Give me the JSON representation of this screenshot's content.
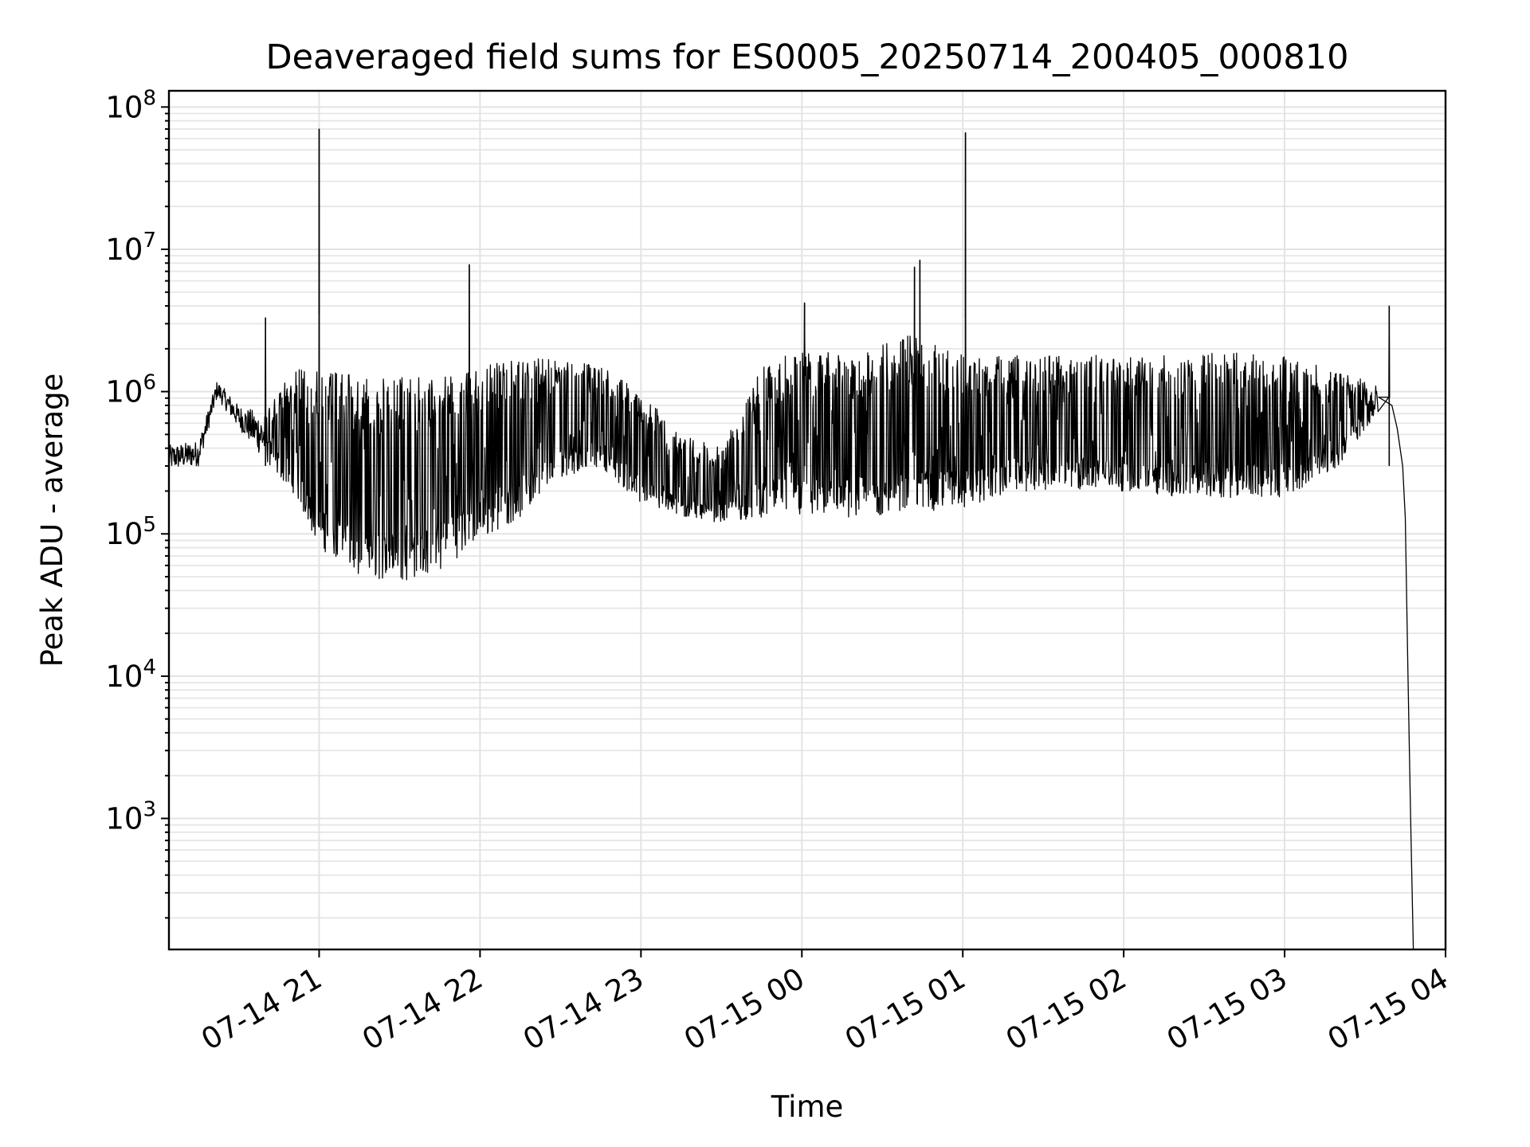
{
  "chart_data": {
    "type": "line",
    "title": "Deaveraged field sums for ES0005_20250714_200405_000810",
    "xlabel": "Time",
    "ylabel": "Peak ADU - average",
    "yscale": "log",
    "grid": true,
    "line_color": "#000000",
    "xlim": [
      "2025-07-14 20:04",
      "2025-07-15 04:00"
    ],
    "ylim": [
      120,
      130000000
    ],
    "x_ticks": [
      {
        "t": "2025-07-14 21:00",
        "label": "07-14 21"
      },
      {
        "t": "2025-07-14 22:00",
        "label": "07-14 22"
      },
      {
        "t": "2025-07-14 23:00",
        "label": "07-14 23"
      },
      {
        "t": "2025-07-15 00:00",
        "label": "07-15 00"
      },
      {
        "t": "2025-07-15 01:00",
        "label": "07-15 01"
      },
      {
        "t": "2025-07-15 02:00",
        "label": "07-15 02"
      },
      {
        "t": "2025-07-15 03:00",
        "label": "07-15 03"
      },
      {
        "t": "2025-07-15 04:00",
        "label": "07-15 04"
      }
    ],
    "y_ticks": [
      {
        "value": 1000,
        "base": "10",
        "exp": "3"
      },
      {
        "value": 10000,
        "base": "10",
        "exp": "4"
      },
      {
        "value": 100000,
        "base": "10",
        "exp": "5"
      },
      {
        "value": 1000000,
        "base": "10",
        "exp": "6"
      },
      {
        "value": 10000000,
        "base": "10",
        "exp": "7"
      },
      {
        "value": 100000000,
        "base": "10",
        "exp": "8"
      }
    ],
    "envelope": [
      {
        "t": "2025-07-14 20:04",
        "low": 280000,
        "high": 420000
      },
      {
        "t": "2025-07-14 20:15",
        "low": 300000,
        "high": 450000
      },
      {
        "t": "2025-07-14 20:22",
        "low": 900000,
        "high": 1200000
      },
      {
        "t": "2025-07-14 20:30",
        "low": 550000,
        "high": 800000
      },
      {
        "t": "2025-07-14 20:40",
        "low": 320000,
        "high": 700000
      },
      {
        "t": "2025-07-14 20:50",
        "low": 200000,
        "high": 1500000
      },
      {
        "t": "2025-07-14 21:00",
        "low": 80000,
        "high": 1400000
      },
      {
        "t": "2025-07-14 21:15",
        "low": 50000,
        "high": 1300000
      },
      {
        "t": "2025-07-14 21:30",
        "low": 45000,
        "high": 1250000
      },
      {
        "t": "2025-07-14 21:45",
        "low": 55000,
        "high": 1300000
      },
      {
        "t": "2025-07-14 22:00",
        "low": 90000,
        "high": 1500000
      },
      {
        "t": "2025-07-14 22:15",
        "low": 130000,
        "high": 1700000
      },
      {
        "t": "2025-07-14 22:30",
        "low": 250000,
        "high": 1700000
      },
      {
        "t": "2025-07-14 22:45",
        "low": 300000,
        "high": 1500000
      },
      {
        "t": "2025-07-14 23:00",
        "low": 160000,
        "high": 1000000
      },
      {
        "t": "2025-07-14 23:15",
        "low": 130000,
        "high": 500000
      },
      {
        "t": "2025-07-14 23:30",
        "low": 120000,
        "high": 400000
      },
      {
        "t": "2025-07-14 23:45",
        "low": 130000,
        "high": 1500000
      },
      {
        "t": "2025-07-15 00:00",
        "low": 130000,
        "high": 2000000
      },
      {
        "t": "2025-07-15 00:20",
        "low": 130000,
        "high": 1800000
      },
      {
        "t": "2025-07-15 00:40",
        "low": 140000,
        "high": 2500000
      },
      {
        "t": "2025-07-15 01:00",
        "low": 150000,
        "high": 1800000
      },
      {
        "t": "2025-07-15 01:20",
        "low": 200000,
        "high": 1800000
      },
      {
        "t": "2025-07-15 01:40",
        "low": 200000,
        "high": 1800000
      },
      {
        "t": "2025-07-15 02:00",
        "low": 200000,
        "high": 1800000
      },
      {
        "t": "2025-07-15 02:20",
        "low": 180000,
        "high": 1800000
      },
      {
        "t": "2025-07-15 02:40",
        "low": 180000,
        "high": 1900000
      },
      {
        "t": "2025-07-15 03:00",
        "low": 180000,
        "high": 1800000
      },
      {
        "t": "2025-07-15 03:20",
        "low": 300000,
        "high": 1400000
      },
      {
        "t": "2025-07-15 03:35",
        "low": 700000,
        "high": 1100000
      }
    ],
    "spikes": [
      {
        "t": "2025-07-14 20:40",
        "value": 3300000
      },
      {
        "t": "2025-07-14 21:00",
        "value": 70000000
      },
      {
        "t": "2025-07-14 21:56",
        "value": 7800000
      },
      {
        "t": "2025-07-15 00:01",
        "value": 4200000
      },
      {
        "t": "2025-07-15 00:42",
        "value": 7500000
      },
      {
        "t": "2025-07-15 00:44",
        "value": 8400000
      },
      {
        "t": "2025-07-15 01:01",
        "value": 66000000
      },
      {
        "t": "2025-07-15 03:39",
        "value": 4000000
      }
    ],
    "tail": [
      {
        "t": "2025-07-15 03:40",
        "value": 800000
      },
      {
        "t": "2025-07-15 03:42",
        "value": 550000
      },
      {
        "t": "2025-07-15 03:44",
        "value": 300000
      },
      {
        "t": "2025-07-15 03:45",
        "value": 130000
      },
      {
        "t": "2025-07-15 03:46",
        "value": 10000
      },
      {
        "t": "2025-07-15 03:47",
        "value": 1000
      },
      {
        "t": "2025-07-15 03:48",
        "value": 120
      }
    ]
  }
}
